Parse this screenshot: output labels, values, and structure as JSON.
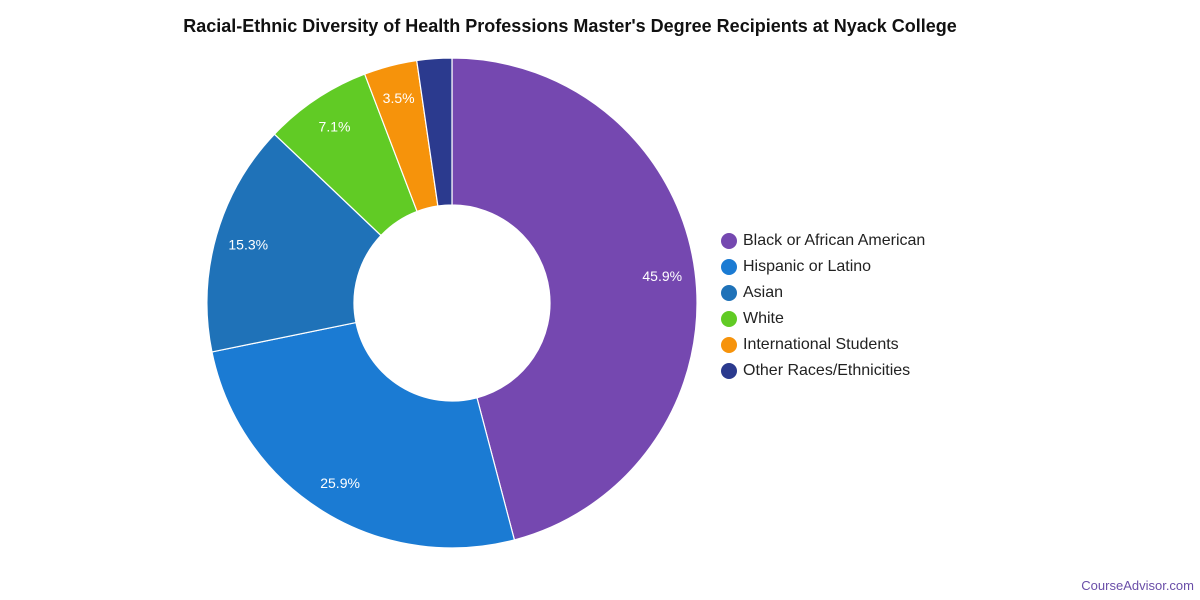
{
  "chart_data": {
    "type": "pie",
    "title": "Racial-Ethnic Diversity of Health Professions Master's Degree Recipients at Nyack College",
    "donut": true,
    "slices": [
      {
        "label": "Black or African American",
        "value": 45.9,
        "display": "45.9%",
        "color": "#7548b0"
      },
      {
        "label": "Hispanic or Latino",
        "value": 25.9,
        "display": "25.9%",
        "color": "#1b7bd3"
      },
      {
        "label": "Asian",
        "value": 15.3,
        "display": "15.3%",
        "color": "#1f72b8"
      },
      {
        "label": "White",
        "value": 7.1,
        "display": "7.1%",
        "color": "#61cb25"
      },
      {
        "label": "International Students",
        "value": 3.5,
        "display": "3.5%",
        "color": "#f6930b"
      },
      {
        "label": "Other Races/Ethnicities",
        "value": 2.3,
        "display": "",
        "color": "#2b3a8e"
      }
    ],
    "legend_position": "right"
  },
  "footer": {
    "source": "CourseAdvisor.com"
  }
}
